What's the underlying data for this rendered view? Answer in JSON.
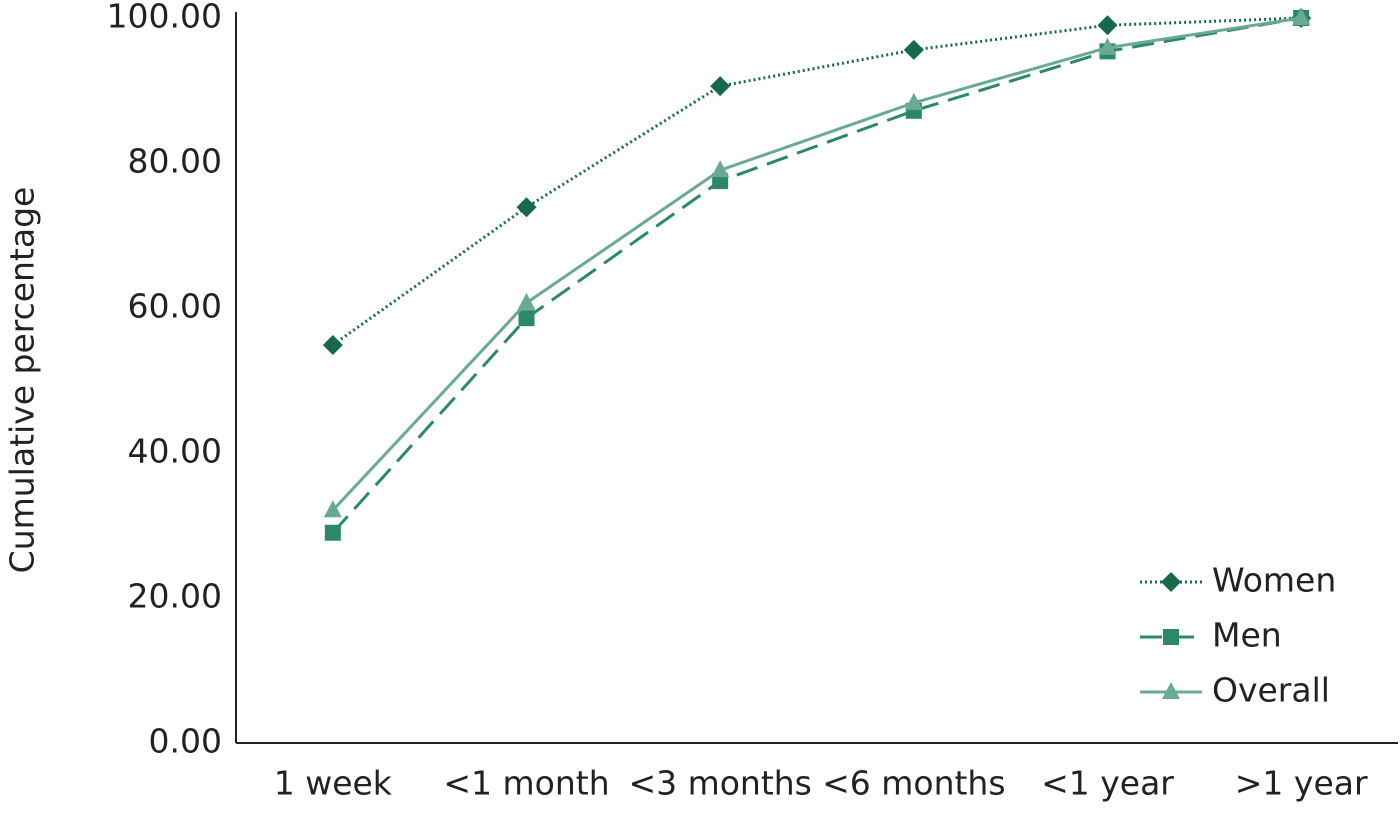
{
  "chart_data": {
    "type": "line",
    "y_label": "Cumulative percentage",
    "categories": [
      "1 week",
      "<1 month",
      "<3 months",
      "<6 months",
      "<1 year",
      ">1 year"
    ],
    "series": [
      {
        "name": "Women",
        "color": "#17694a",
        "line_style": "dotted",
        "marker": "diamond",
        "values": [
          54.9,
          73.9,
          90.6,
          95.6,
          99.0,
          100
        ]
      },
      {
        "name": "Men",
        "color": "#2a8a68",
        "line_style": "dashed",
        "marker": "square",
        "values": [
          29.0,
          58.6,
          77.5,
          87.2,
          95.4,
          100
        ]
      },
      {
        "name": "Overall",
        "color": "#6aaa93",
        "line_style": "solid",
        "marker": "triangle",
        "values": [
          32.1,
          60.7,
          79.0,
          88.3,
          95.9,
          100
        ]
      }
    ],
    "ylim": [
      0,
      100
    ],
    "yticks": [
      {
        "value": 0,
        "label": "0.00"
      },
      {
        "value": 20,
        "label": "20.00"
      },
      {
        "value": 40,
        "label": "40.00"
      },
      {
        "value": 60,
        "label": "60.00"
      },
      {
        "value": 80,
        "label": "80.00"
      },
      {
        "value": 100,
        "label": "100.00"
      }
    ],
    "grid": false,
    "legend_position": "bottom-right"
  }
}
